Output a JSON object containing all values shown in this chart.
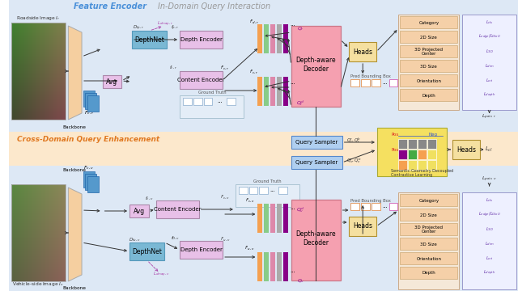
{
  "bg_top_color": "#dde8f5",
  "bg_mid_color": "#fce8cc",
  "bg_bot_color": "#dde8f5",
  "text_feature_encoder": "Feature Encoder",
  "text_in_domain": "In-Domain Query Interaction",
  "text_cross_domain": "Cross-Domain Query Enhancement",
  "color_feature_encoder": "#4a90d9",
  "color_in_domain": "#999999",
  "color_cross_domain": "#e07820",
  "roadside_label": "Roadside Image $I_r$",
  "vehicle_label": "Vehicle-side Image $I_v$",
  "backbone_label": "Backbone",
  "depthnet_color": "#7ab8d4",
  "avg_color": "#e8c0e8",
  "content_enc_color": "#e8c0e8",
  "depth_enc_color": "#e8c0e8",
  "decoder_color": "#f5a0b0",
  "heads_color": "#f5e0a0",
  "heads_outline": "#b09030",
  "query_sampler_color": "#b0cff0",
  "contrastive_color": "#f5e060",
  "loss_labels": [
    "Category",
    "2D Size",
    "3D Projected\nCenter",
    "3D Size",
    "Orientation",
    "Depth"
  ],
  "loss_r": [
    "$L_{cls}$",
    "$L_{edge}/L_{GIoU}$",
    "$L_{3D}$",
    "$L_{dim}$",
    "$L_{ori}$",
    "$L_{depth}$"
  ],
  "loss_v": [
    "$L_{cls}$",
    "$L_{edge}/L_{GIoU}$",
    "$L_{3D}$",
    "$L_{dim}$",
    "$L_{ori}$",
    "$L_{depth}$"
  ],
  "loss_pair_r": "$L_{pair,r}$",
  "loss_pair_v": "$L_{pair,v}$",
  "loss_cl": "$L_{cl}$",
  "feat_colors": [
    "#f5a050",
    "#88cc88",
    "#dd88aa",
    "#aaaaaa"
  ],
  "feat_purple": "#880088"
}
